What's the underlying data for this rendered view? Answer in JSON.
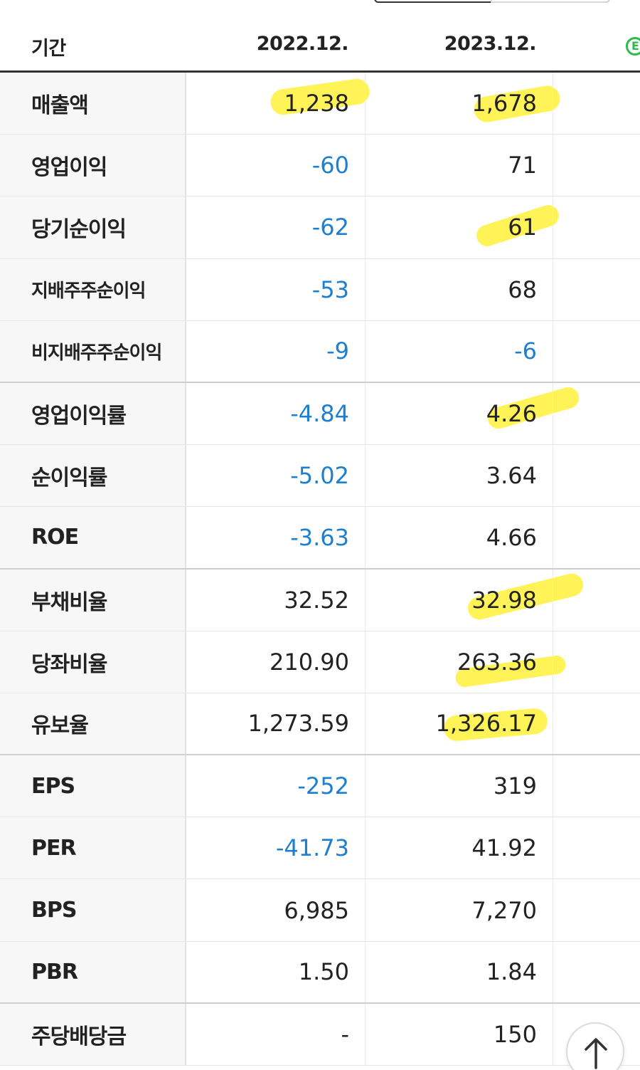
{
  "header": {
    "label": "기간",
    "col1": "2022.12.",
    "col2": "2023.12.",
    "badge": "E"
  },
  "rows": [
    {
      "label": "매출액",
      "v1": "1,238",
      "v2": "1,678",
      "v1_negative": false,
      "v2_negative": false
    },
    {
      "label": "영업이익",
      "v1": "-60",
      "v2": "71",
      "v1_negative": true,
      "v2_negative": false
    },
    {
      "label": "당기순이익",
      "v1": "-62",
      "v2": "61",
      "v1_negative": true,
      "v2_negative": false
    },
    {
      "label": "지배주주순이익",
      "v1": "-53",
      "v2": "68",
      "v1_negative": true,
      "v2_negative": false
    },
    {
      "label": "비지배주주순이익",
      "v1": "-9",
      "v2": "-6",
      "v1_negative": true,
      "v2_negative": true
    },
    {
      "label": "영업이익률",
      "v1": "-4.84",
      "v2": "4.26",
      "v1_negative": true,
      "v2_negative": false
    },
    {
      "label": "순이익률",
      "v1": "-5.02",
      "v2": "3.64",
      "v1_negative": true,
      "v2_negative": false
    },
    {
      "label": "ROE",
      "v1": "-3.63",
      "v2": "4.66",
      "v1_negative": true,
      "v2_negative": false
    },
    {
      "label": "부채비율",
      "v1": "32.52",
      "v2": "32.98",
      "v1_negative": false,
      "v2_negative": false
    },
    {
      "label": "당좌비율",
      "v1": "210.90",
      "v2": "263.36",
      "v1_negative": false,
      "v2_negative": false
    },
    {
      "label": "유보율",
      "v1": "1,273.59",
      "v2": "1,326.17",
      "v1_negative": false,
      "v2_negative": false
    },
    {
      "label": "EPS",
      "v1": "-252",
      "v2": "319",
      "v1_negative": true,
      "v2_negative": false
    },
    {
      "label": "PER",
      "v1": "-41.73",
      "v2": "41.92",
      "v1_negative": true,
      "v2_negative": false
    },
    {
      "label": "BPS",
      "v1": "6,985",
      "v2": "7,270",
      "v1_negative": false,
      "v2_negative": false
    },
    {
      "label": "PBR",
      "v1": "1.50",
      "v2": "1.84",
      "v1_negative": false,
      "v2_negative": false
    },
    {
      "label": "주당배당금",
      "v1": "-",
      "v2": "150",
      "v1_negative": false,
      "v2_negative": false
    }
  ],
  "colors": {
    "negative": "#1d7fd0",
    "highlight": "#fff028",
    "badge": "#2dbb4a"
  },
  "icons": {
    "scroll_top": "arrow-up-icon",
    "badge": "e-badge-icon"
  }
}
